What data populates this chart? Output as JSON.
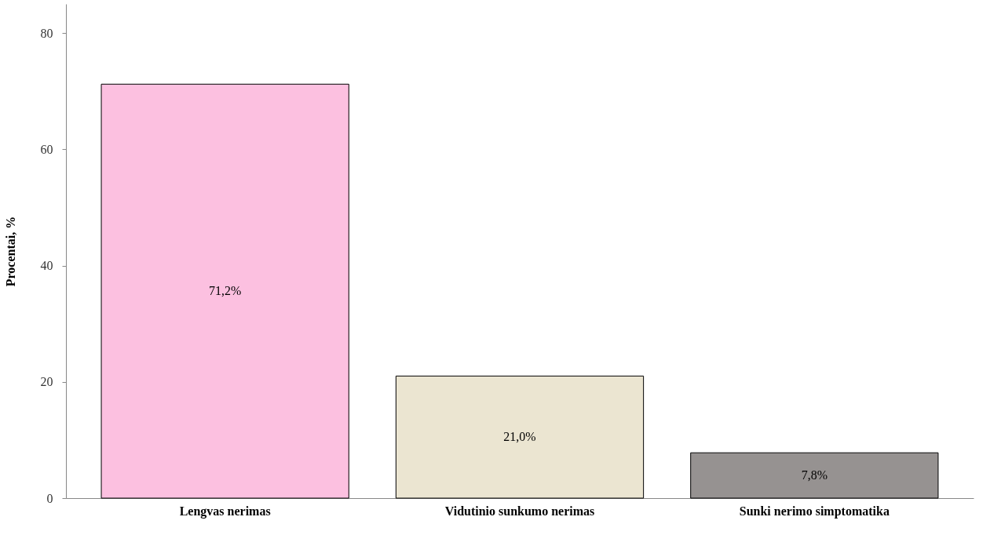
{
  "chart_data": {
    "type": "bar",
    "ylabel": "Procentai, %",
    "categories": [
      "Lengvas nerimas",
      "Vidutinio sunkumo nerimas",
      "Sunki nerimo simptomatika"
    ],
    "values": [
      71.2,
      21.0,
      7.8
    ],
    "colors": [
      "#fcc0e0",
      "#ebe5d1",
      "#969291"
    ],
    "value_labels": [
      "71,2%",
      "21,0%",
      "7,8%"
    ],
    "ylim": [
      0,
      85
    ],
    "yticks": [
      0,
      20,
      40,
      60,
      80
    ],
    "grid": false
  }
}
